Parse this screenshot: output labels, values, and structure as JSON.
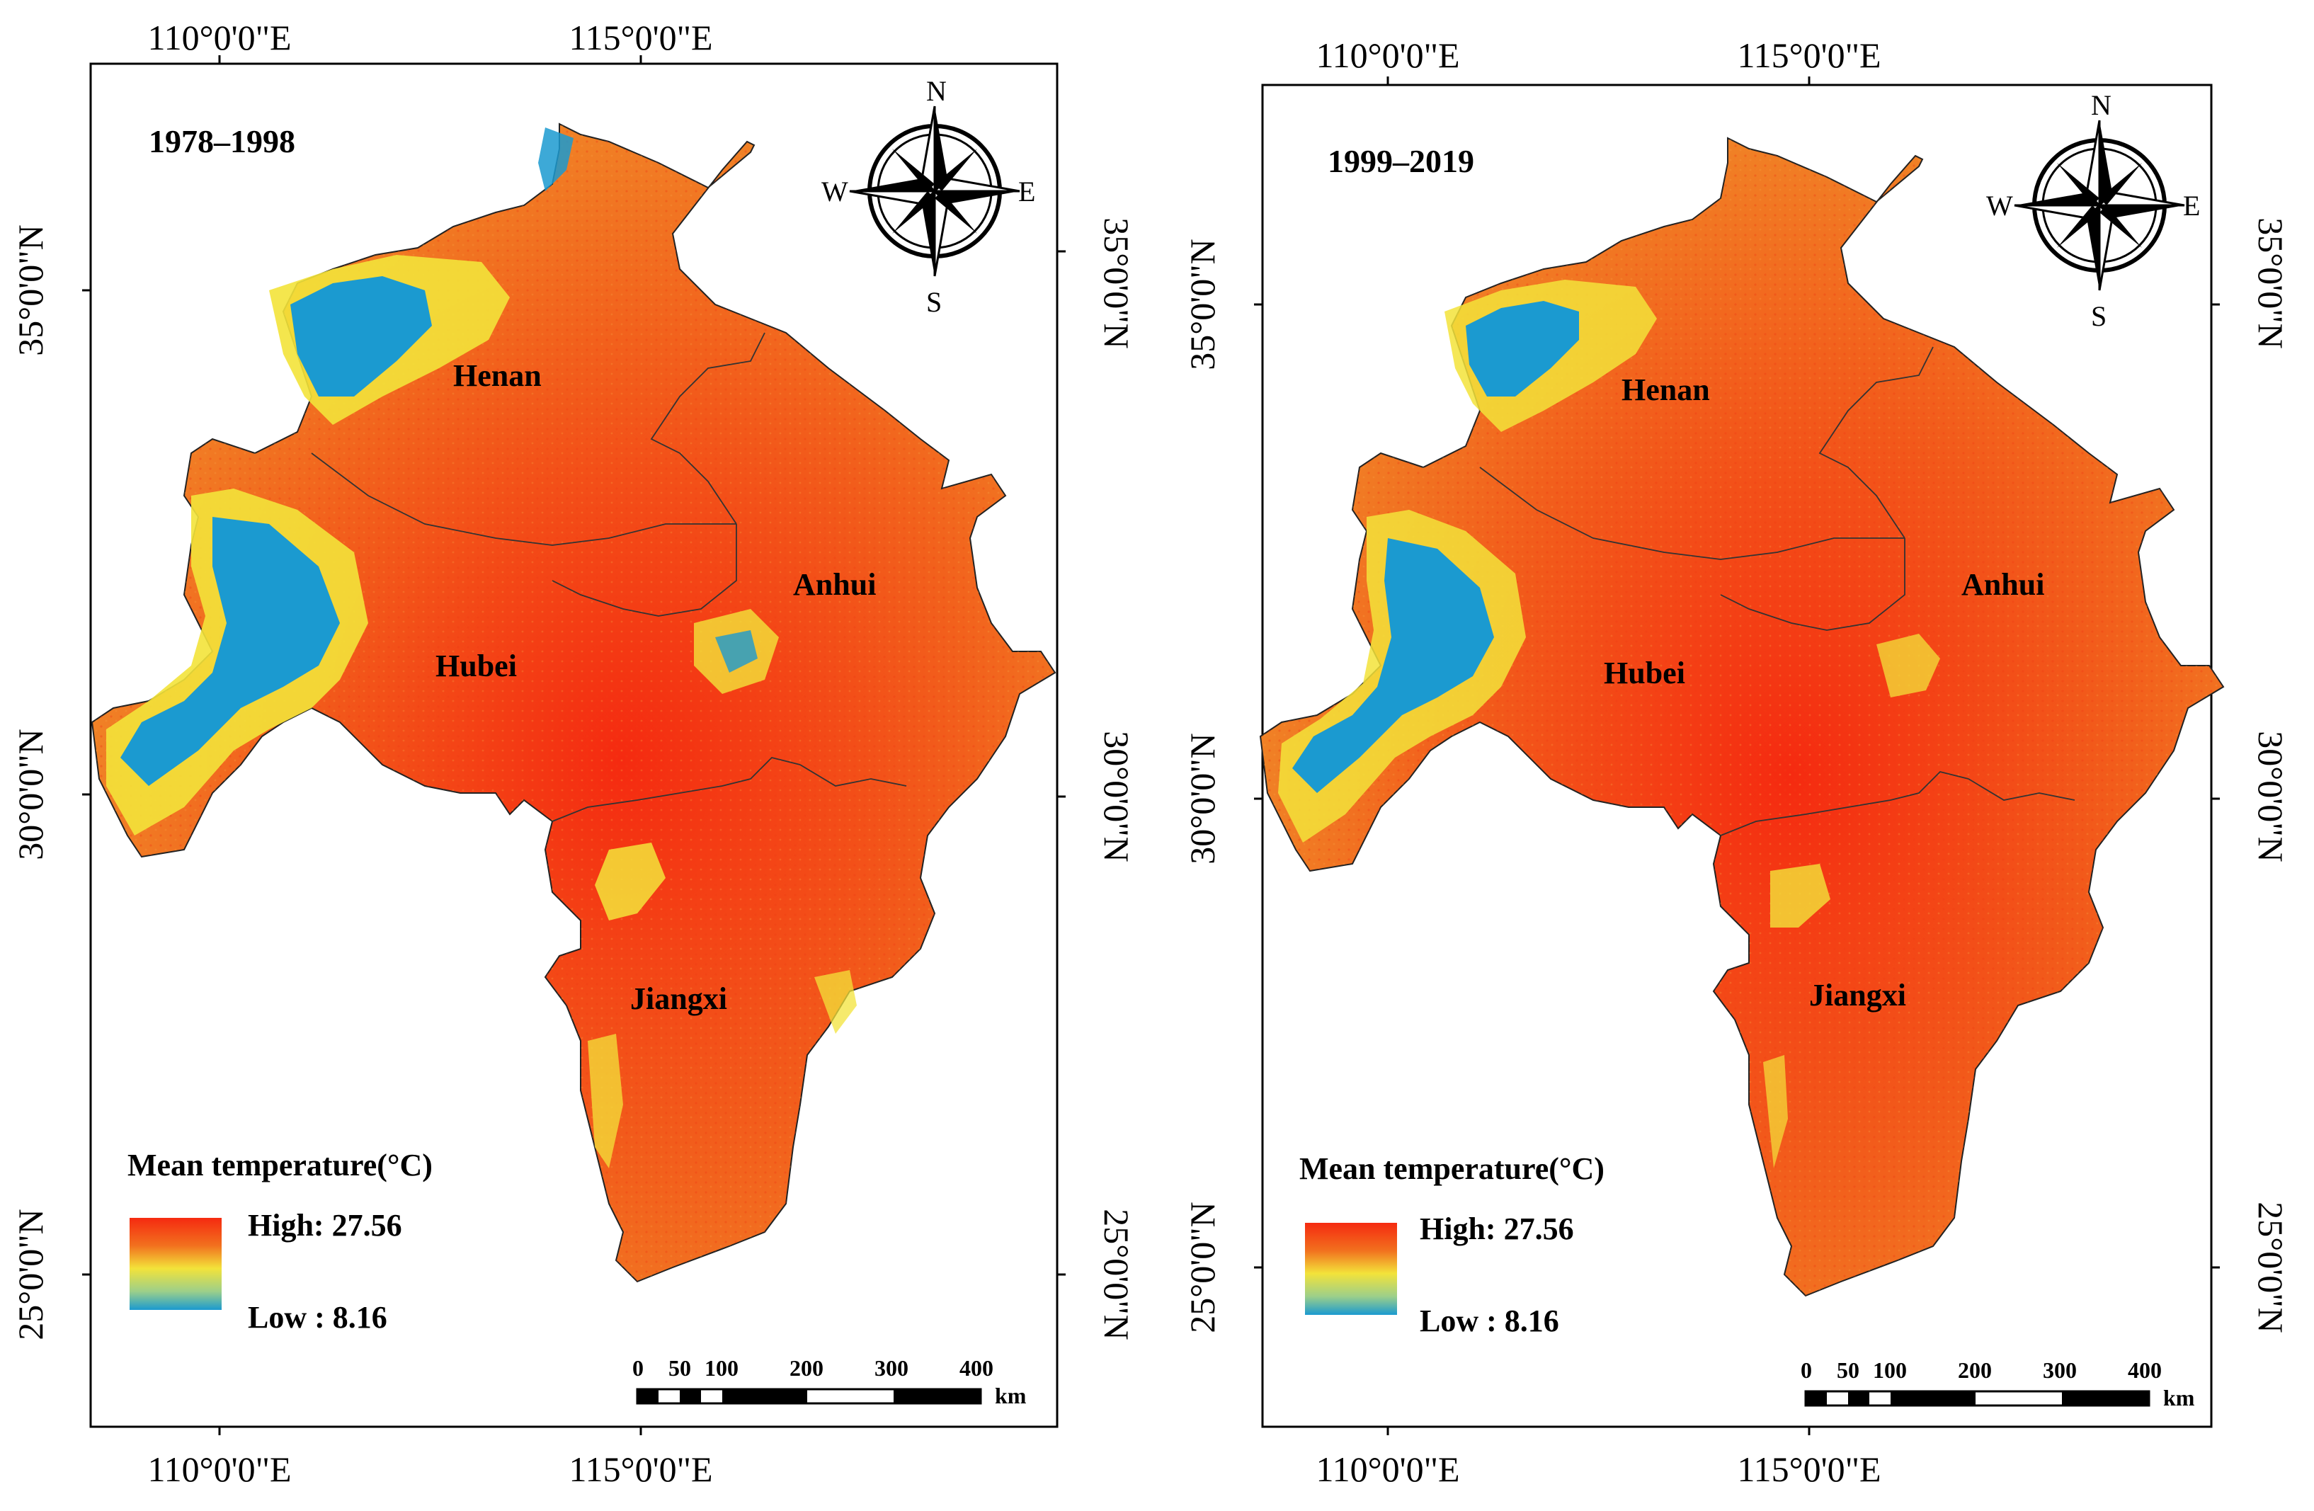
{
  "colors": {
    "high": "#f52a10",
    "mid_orange": "#f2701e",
    "mid_yellow": "#f3e33a",
    "low": "#1b9ad0",
    "frame": "#000000"
  },
  "panels": [
    {
      "period": "1978–1998",
      "lon_labels": [
        "110°0'0\"E",
        "115°0'0\"E"
      ],
      "lat_labels": [
        "35°0'0\"N",
        "30°0'0\"N",
        "25°0'0\"N"
      ],
      "provinces": [
        "Henan",
        "Anhui",
        "Hubei",
        "Jiangxi"
      ],
      "compass": {
        "n": "N",
        "s": "S",
        "e": "E",
        "w": "W"
      },
      "legend": {
        "title": "Mean temperature(°C)",
        "high": "High: 27.56",
        "low": "Low : 8.16"
      },
      "scale": {
        "ticks": [
          "0",
          "50",
          "100",
          "200",
          "300",
          "400"
        ],
        "unit": "km"
      }
    },
    {
      "period": "1999–2019",
      "lon_labels": [
        "110°0'0\"E",
        "115°0'0\"E"
      ],
      "lat_labels": [
        "35°0'0\"N",
        "30°0'0\"N",
        "25°0'0\"N"
      ],
      "provinces": [
        "Henan",
        "Anhui",
        "Hubei",
        "Jiangxi"
      ],
      "compass": {
        "n": "N",
        "s": "S",
        "e": "E",
        "w": "W"
      },
      "legend": {
        "title": "Mean temperature(°C)",
        "high": "High: 27.56",
        "low": "Low : 8.16"
      },
      "scale": {
        "ticks": [
          "0",
          "50",
          "100",
          "200",
          "300",
          "400"
        ],
        "unit": "km"
      }
    }
  ]
}
